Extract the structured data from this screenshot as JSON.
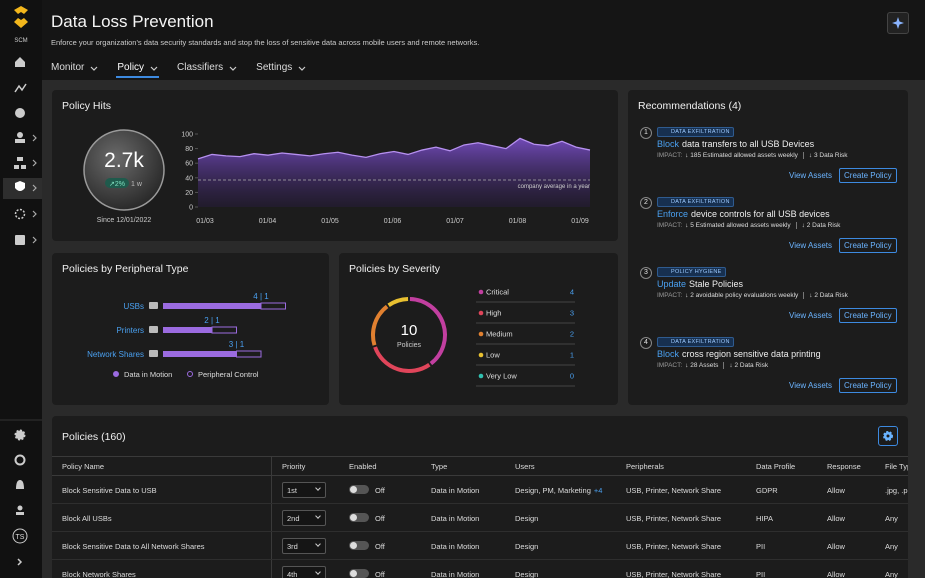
{
  "sidebar": {
    "brand": "SCM",
    "user_initials": "TS"
  },
  "header": {
    "title": "Data Loss Prevention",
    "subtitle": "Enforce your organization's data security standards and stop the loss of sensitive data across mobile users and remote networks.",
    "tabs": [
      "Monitor",
      "Policy",
      "Classifiers",
      "Settings"
    ],
    "active_tab": 1
  },
  "policy_hits": {
    "title": "Policy Hits",
    "total": "2.7k",
    "change": "↗2%",
    "period": "1 w",
    "since": "Since 12/01/2022",
    "chart": {
      "type": "area",
      "x_labels": [
        "01/03",
        "01/04",
        "01/05",
        "01/06",
        "01/07",
        "01/08",
        "01/09"
      ],
      "values": [
        66,
        72,
        70,
        69,
        73,
        71,
        74,
        72,
        70,
        73,
        75,
        71,
        68,
        73,
        76,
        72,
        78,
        82,
        77,
        85,
        88,
        84,
        80,
        94,
        86,
        84,
        90,
        82,
        78
      ],
      "ylim": [
        0,
        100
      ],
      "yticks": [
        0,
        20,
        40,
        60,
        80,
        100
      ],
      "average": 37,
      "average_label": "company average in a year",
      "color": "#8a5cd6"
    }
  },
  "peripheral": {
    "title": "Policies by Peripheral Type",
    "chart": {
      "type": "bar",
      "categories": [
        "USBs",
        "Printers",
        "Network Shares"
      ],
      "xlim": [
        0,
        6
      ],
      "series": [
        {
          "name": "Data in Motion",
          "color": "#9b6be0",
          "values": [
            4,
            2,
            3
          ]
        },
        {
          "name": "Peripheral Control",
          "color": "#9b6be0",
          "values": [
            1,
            1,
            1
          ]
        }
      ],
      "value_labels": [
        "4 | 1",
        "2 | 1",
        "3 | 1"
      ]
    }
  },
  "severity": {
    "title": "Policies by Severity",
    "total": "10",
    "total_label": "Policies",
    "chart": {
      "type": "donut",
      "categories": [
        "Critical",
        "High",
        "Medium",
        "Low",
        "Very Low"
      ],
      "values": [
        4,
        3,
        2,
        1,
        0
      ],
      "colors": [
        "#c23fa0",
        "#e0455a",
        "#e08030",
        "#e8c030",
        "#30c0b0"
      ]
    }
  },
  "recommendations": {
    "title": "Recommendations (4)",
    "view_label": "View Assets",
    "create_label": "Create Policy",
    "impact_label": "IMPACT:",
    "items": [
      {
        "number": "1",
        "tag": "DATA EXFILTRATION",
        "action": "Block",
        "text": "data transfers to all USB Devices",
        "impact": "↓ 185 Estimated allowed assets weekly",
        "risk": "↓ 3 Data Risk"
      },
      {
        "number": "2",
        "tag": "DATA EXFILTRATION",
        "action": "Enforce",
        "text": "device controls for all USB devices",
        "impact": "↓ 5 Estimated allowed assets weekly",
        "risk": "↓ 2 Data Risk"
      },
      {
        "number": "3",
        "tag": "POLICY HYGIENE",
        "action": "Update",
        "text": "Stale Policies",
        "impact": "↓ 2 avoidable policy evaluations weekly",
        "risk": "↓ 2 Data Risk"
      },
      {
        "number": "4",
        "tag": "DATA EXFILTRATION",
        "action": "Block",
        "text": "cross region sensitive data printing",
        "impact": "↓ 28 Assets",
        "risk": "↓ 2 Data Risk"
      }
    ]
  },
  "policies": {
    "title": "Policies (160)",
    "columns": [
      "Policy Name",
      "Priority",
      "Enabled",
      "Type",
      "Users",
      "Peripherals",
      "Data Profile",
      "Response",
      "File Type"
    ],
    "rows": [
      {
        "name": "Block Sensitive Data to USB",
        "priority": "1st",
        "enabled": "Off",
        "type": "Data in Motion",
        "users": "Design, PM, Marketing",
        "users_more": "+4",
        "peripherals": "USB, Printer, Network Share",
        "profile": "GDPR",
        "response": "Allow",
        "files": ".jpg, .pr"
      },
      {
        "name": "Block All USBs",
        "priority": "2nd",
        "enabled": "Off",
        "type": "Data in Motion",
        "users": "Design",
        "peripherals": "USB, Printer, Network Share",
        "profile": "HIPA",
        "response": "Allow",
        "files": "Any"
      },
      {
        "name": "Block Sensitive Data to All Network Shares",
        "priority": "3rd",
        "enabled": "Off",
        "type": "Data in Motion",
        "users": "Design",
        "peripherals": "USB, Printer, Network Share",
        "profile": "PII",
        "response": "Allow",
        "files": "Any"
      },
      {
        "name": "Block Network Shares",
        "priority": "4th",
        "enabled": "Off",
        "type": "Data in Motion",
        "users": "Design",
        "peripherals": "USB, Printer, Network Share",
        "profile": "PII",
        "response": "Allow",
        "files": "Any"
      }
    ]
  }
}
